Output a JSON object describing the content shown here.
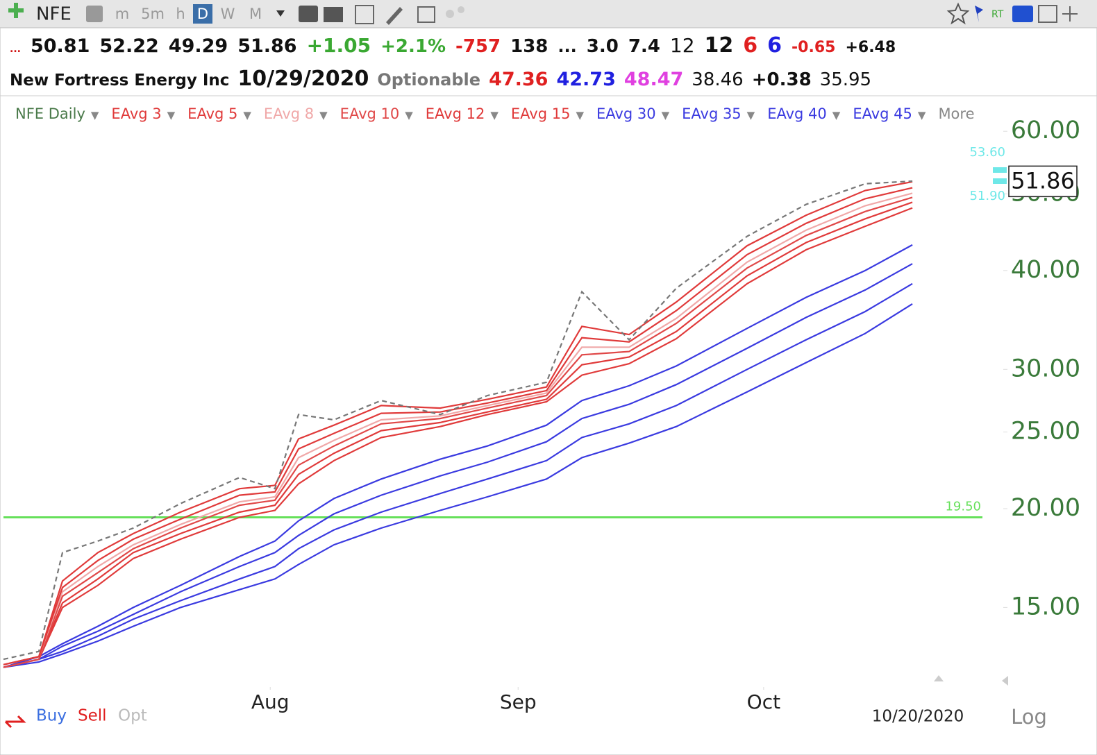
{
  "toolbar": {
    "symbol": "NFE",
    "intervals": [
      "m",
      "5m",
      "h",
      "D",
      "W",
      "M"
    ],
    "active_interval": "D",
    "rt": "RT"
  },
  "quote_line_1": [
    {
      "text": "...",
      "color": "#d01010"
    },
    {
      "text": "50.81",
      "color": "#111"
    },
    {
      "text": "52.22",
      "color": "#111"
    },
    {
      "text": "49.29",
      "color": "#111"
    },
    {
      "text": "51.86",
      "color": "#111"
    },
    {
      "text": "+1.05",
      "color": "#3aa832"
    },
    {
      "text": "+2.1%",
      "color": "#3aa832"
    },
    {
      "text": "-757",
      "color": "#e02020"
    },
    {
      "text": "138",
      "color": "#111"
    },
    {
      "text": "...",
      "color": "#111"
    },
    {
      "text": "3.0",
      "color": "#111"
    },
    {
      "text": "7.4",
      "color": "#111"
    },
    {
      "text": "12",
      "color": "#111"
    },
    {
      "text": "12",
      "color": "#111"
    },
    {
      "text": "6",
      "color": "#e02020"
    },
    {
      "text": "6",
      "color": "#2020e0"
    },
    {
      "text": "-0.65",
      "color": "#e02020"
    },
    {
      "text": "+6.48",
      "color": "#111"
    }
  ],
  "quote_line_2": [
    {
      "text": "New Fortress Energy Inc",
      "color": "#111"
    },
    {
      "text": "10/29/2020",
      "color": "#111"
    },
    {
      "text": "Optionable",
      "color": "#777"
    },
    {
      "text": "47.36",
      "color": "#e02020"
    },
    {
      "text": "42.73",
      "color": "#2020e0"
    },
    {
      "text": "48.47",
      "color": "#e040e0"
    },
    {
      "text": "38.46",
      "color": "#111"
    },
    {
      "text": "+0.38",
      "color": "#111"
    },
    {
      "text": "35.95",
      "color": "#111"
    }
  ],
  "trade_buttons": [
    {
      "text": "Buy",
      "color": "#3a6ee0"
    },
    {
      "text": "Sell",
      "color": "#e02020"
    },
    {
      "text": "Opt",
      "color": "#bbb"
    }
  ],
  "chart_data": {
    "type": "line",
    "log_scale": true,
    "scale_label": "Log",
    "legend_more": "More",
    "date_label": "10/20/2020",
    "x": [
      0,
      3,
      5,
      8,
      11,
      15,
      20,
      23,
      25,
      28,
      32,
      37,
      41,
      46,
      49,
      53,
      57,
      63,
      68,
      73,
      77
    ],
    "xlim": [
      0,
      84.7
    ],
    "xticks": [
      {
        "value": 22.6,
        "label": "Aug"
      },
      {
        "value": 43.6,
        "label": "Sep"
      },
      {
        "value": 64.4,
        "label": "Oct"
      }
    ],
    "ylim": [
      11.9,
      65.6
    ],
    "yticks": [
      {
        "value": 15,
        "label": "15.00"
      },
      {
        "value": 20,
        "label": "20.00"
      },
      {
        "value": 25,
        "label": "25.00"
      },
      {
        "value": 30,
        "label": "30.00"
      },
      {
        "value": 40,
        "label": "40.00"
      },
      {
        "value": 50,
        "label": "50.00"
      },
      {
        "value": 60,
        "label": "60.00"
      }
    ],
    "series": [
      {
        "name": "EAvg 45",
        "color": "#3a3ae0",
        "values": [
          12.6,
          12.8,
          13.1,
          13.6,
          14.2,
          15.0,
          15.8,
          16.3,
          17.0,
          18.0,
          18.9,
          19.9,
          20.7,
          21.8,
          23.2,
          24.2,
          25.4,
          28.1,
          30.6,
          33.3,
          36.3
        ]
      },
      {
        "name": "EAvg 40",
        "color": "#3a3ae0",
        "values": [
          12.6,
          12.9,
          13.2,
          13.8,
          14.5,
          15.3,
          16.3,
          16.9,
          17.8,
          18.8,
          19.8,
          20.9,
          21.8,
          23.0,
          24.6,
          25.6,
          27.0,
          30.0,
          32.7,
          35.5,
          38.5
        ]
      },
      {
        "name": "EAvg 35",
        "color": "#3a3ae0",
        "values": [
          12.6,
          12.9,
          13.4,
          14.0,
          14.7,
          15.7,
          16.9,
          17.6,
          18.5,
          19.7,
          20.8,
          22.0,
          22.9,
          24.3,
          26.0,
          27.1,
          28.7,
          31.9,
          34.9,
          37.8,
          40.8
        ]
      },
      {
        "name": "EAvg 30",
        "color": "#3a3ae0",
        "values": [
          12.6,
          13.0,
          13.5,
          14.2,
          15.0,
          16.0,
          17.4,
          18.2,
          19.3,
          20.6,
          21.8,
          23.1,
          24.0,
          25.5,
          27.4,
          28.6,
          30.3,
          33.8,
          37.0,
          40.0,
          43.1
        ]
      },
      {
        "name": "EAvg 15",
        "color": "#e03a3a",
        "values": [
          12.6,
          12.9,
          15.0,
          16.0,
          17.3,
          18.3,
          19.5,
          19.9,
          21.5,
          23.0,
          24.6,
          25.4,
          26.3,
          27.3,
          29.5,
          30.5,
          32.8,
          38.5,
          42.5,
          45.5,
          48.0
        ]
      },
      {
        "name": "EAvg 12",
        "color": "#e03a3a",
        "values": [
          12.6,
          12.9,
          15.2,
          16.3,
          17.6,
          18.6,
          19.8,
          20.2,
          22.1,
          23.5,
          25.1,
          25.7,
          26.5,
          27.5,
          30.4,
          31.1,
          33.5,
          39.4,
          43.4,
          46.5,
          48.8
        ]
      },
      {
        "name": "EAvg 10",
        "color": "#e04848",
        "values": [
          12.6,
          12.9,
          15.5,
          16.6,
          17.8,
          18.9,
          20.2,
          20.5,
          22.7,
          24.0,
          25.6,
          26.0,
          26.8,
          27.8,
          31.3,
          31.6,
          34.3,
          40.3,
          44.3,
          47.5,
          49.5
        ]
      },
      {
        "name": "EAvg 8",
        "color": "#f0a8a8",
        "values": [
          12.7,
          13.0,
          15.7,
          16.9,
          18.0,
          19.1,
          20.4,
          20.7,
          23.2,
          24.4,
          25.9,
          26.2,
          27.0,
          28.0,
          32.0,
          32.0,
          34.8,
          41.0,
          45.0,
          48.3,
          50.1
        ]
      },
      {
        "name": "EAvg 5",
        "color": "#e03a3a",
        "values": [
          12.7,
          13.0,
          15.9,
          17.2,
          18.3,
          19.4,
          20.8,
          21.0,
          23.8,
          24.9,
          26.4,
          26.5,
          27.2,
          28.2,
          32.9,
          32.5,
          35.6,
          41.9,
          45.9,
          49.3,
          50.9
        ]
      },
      {
        "name": "EAvg 3",
        "color": "#e03a3a",
        "values": [
          12.7,
          13.0,
          16.2,
          17.6,
          18.6,
          19.8,
          21.2,
          21.4,
          24.5,
          25.5,
          27.0,
          26.8,
          27.5,
          28.5,
          34.0,
          33.2,
          36.5,
          43.0,
          47.0,
          50.5,
          51.8
        ]
      },
      {
        "name": "NFE Daily",
        "color": "#777",
        "label_color": "#4a7a4a",
        "dashed": true,
        "values": [
          12.9,
          13.2,
          17.6,
          18.2,
          18.9,
          20.3,
          21.9,
          21.2,
          26.3,
          25.9,
          27.4,
          26.3,
          27.8,
          28.9,
          37.6,
          32.7,
          38.0,
          44.2,
          48.5,
          51.5,
          51.9
        ]
      }
    ],
    "legend_order": [
      10,
      9,
      8,
      7,
      6,
      5,
      4,
      3,
      2,
      1,
      0
    ],
    "hlines": [
      {
        "value": 19.5,
        "label": "19.50",
        "color": "#66e05a"
      }
    ],
    "price_marks": [
      {
        "value": 53.6,
        "label": "53.60"
      },
      {
        "value": 51.9,
        "label": "51.90"
      }
    ],
    "price_marks_color": "#6fe8e8",
    "last_price": {
      "value": 51.86,
      "label": "51.86"
    }
  }
}
